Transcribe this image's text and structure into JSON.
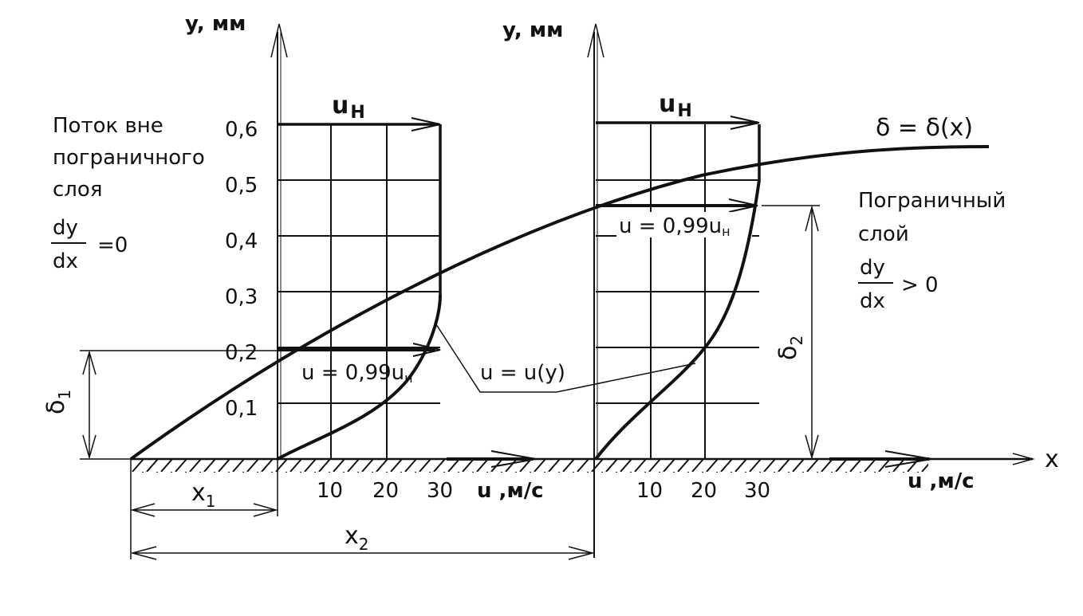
{
  "labels": {
    "y_axis_left": "y, мм",
    "y_axis_right": "y, мм",
    "x_axis": "x",
    "u_axis_left": "u ,м/с",
    "u_axis_right": "u ,м/с",
    "u_outer_left": "u",
    "u_outer_left_sub": "Н",
    "u_outer_right": "u",
    "u_outer_right_sub": "Н",
    "delta_curve": "δ = δ(x)",
    "u_099_left": "u = 0,99u",
    "u_099_left_sub": "н",
    "u_099_right": "u = 0,99u",
    "u_099_right_sub": "н",
    "u_of_y": "u = u(y)",
    "outside_flow_line1": "Поток вне",
    "outside_flow_line2": "пограничного",
    "outside_flow_line3": "слоя",
    "outside_frac_num": "dy",
    "outside_frac_den": "dx",
    "outside_frac_rel": "=0",
    "boundary_layer_line1": "Пограничный",
    "boundary_layer_line2": "слой",
    "boundary_frac_num": "dy",
    "boundary_frac_den": "dx",
    "boundary_frac_rel": "> 0",
    "delta1": "δ",
    "delta1_sub": "1",
    "delta2": "δ",
    "delta2_sub": "2",
    "x1": "x",
    "x1_sub": "1",
    "x2": "x",
    "x2_sub": "2"
  },
  "y_ticks": [
    "0,1",
    "0,2",
    "0,3",
    "0,4",
    "0,5",
    "0,6"
  ],
  "u_ticks_left": [
    "10",
    "20",
    "30"
  ],
  "u_ticks_right": [
    "10",
    "20",
    "30"
  ]
}
